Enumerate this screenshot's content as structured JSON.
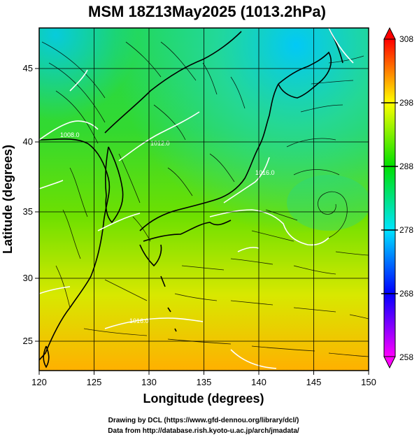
{
  "title": "MSM 18Z13May2025 (1013.2hPa)",
  "xlabel": "Longitude (degrees)",
  "ylabel": "Latitude  (degrees)",
  "x_ticks": [
    "120",
    "125",
    "130",
    "135",
    "140",
    "145",
    "150"
  ],
  "y_ticks": [
    "25",
    "30",
    "35",
    "40",
    "45"
  ],
  "x_range": [
    120,
    150
  ],
  "y_range": [
    22.4,
    47.6
  ],
  "colorbar": {
    "ticks": [
      "308",
      "298",
      "288",
      "278",
      "268",
      "258"
    ],
    "range": [
      258,
      308
    ],
    "colors": [
      "#ff00ff",
      "#0000ff",
      "#00e5ff",
      "#00e000",
      "#ffff00",
      "#ff0000"
    ]
  },
  "isobar_labels": [
    "1008.0",
    "1012.0",
    "1016.0",
    "1016.0"
  ],
  "credits": {
    "line1": "Drawing by DCL (https://www.gfd-dennou.org/library/dcl/)",
    "line2": "Data from http://database.rish.kyoto-u.ac.jp/arch/jmadata/"
  },
  "colors": {
    "land_outline": "#000000",
    "isobar": "#ffffff",
    "streamline": "#000000"
  }
}
